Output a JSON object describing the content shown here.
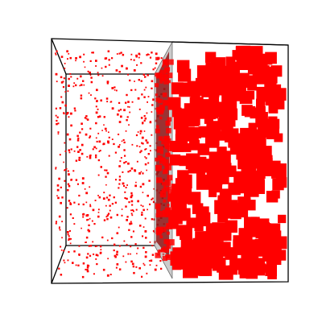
{
  "scene": {
    "background": "#ffffff",
    "frame_color": "#000000",
    "point_color": "#ff0000",
    "plane_color": "#a0a0a0",
    "plane_edge_color": "#707070",
    "shadow_color": "#8a0000",
    "left_region_marker": "small-points",
    "right_region_marker": "large-cubes",
    "plane_opacity": 0.55
  }
}
